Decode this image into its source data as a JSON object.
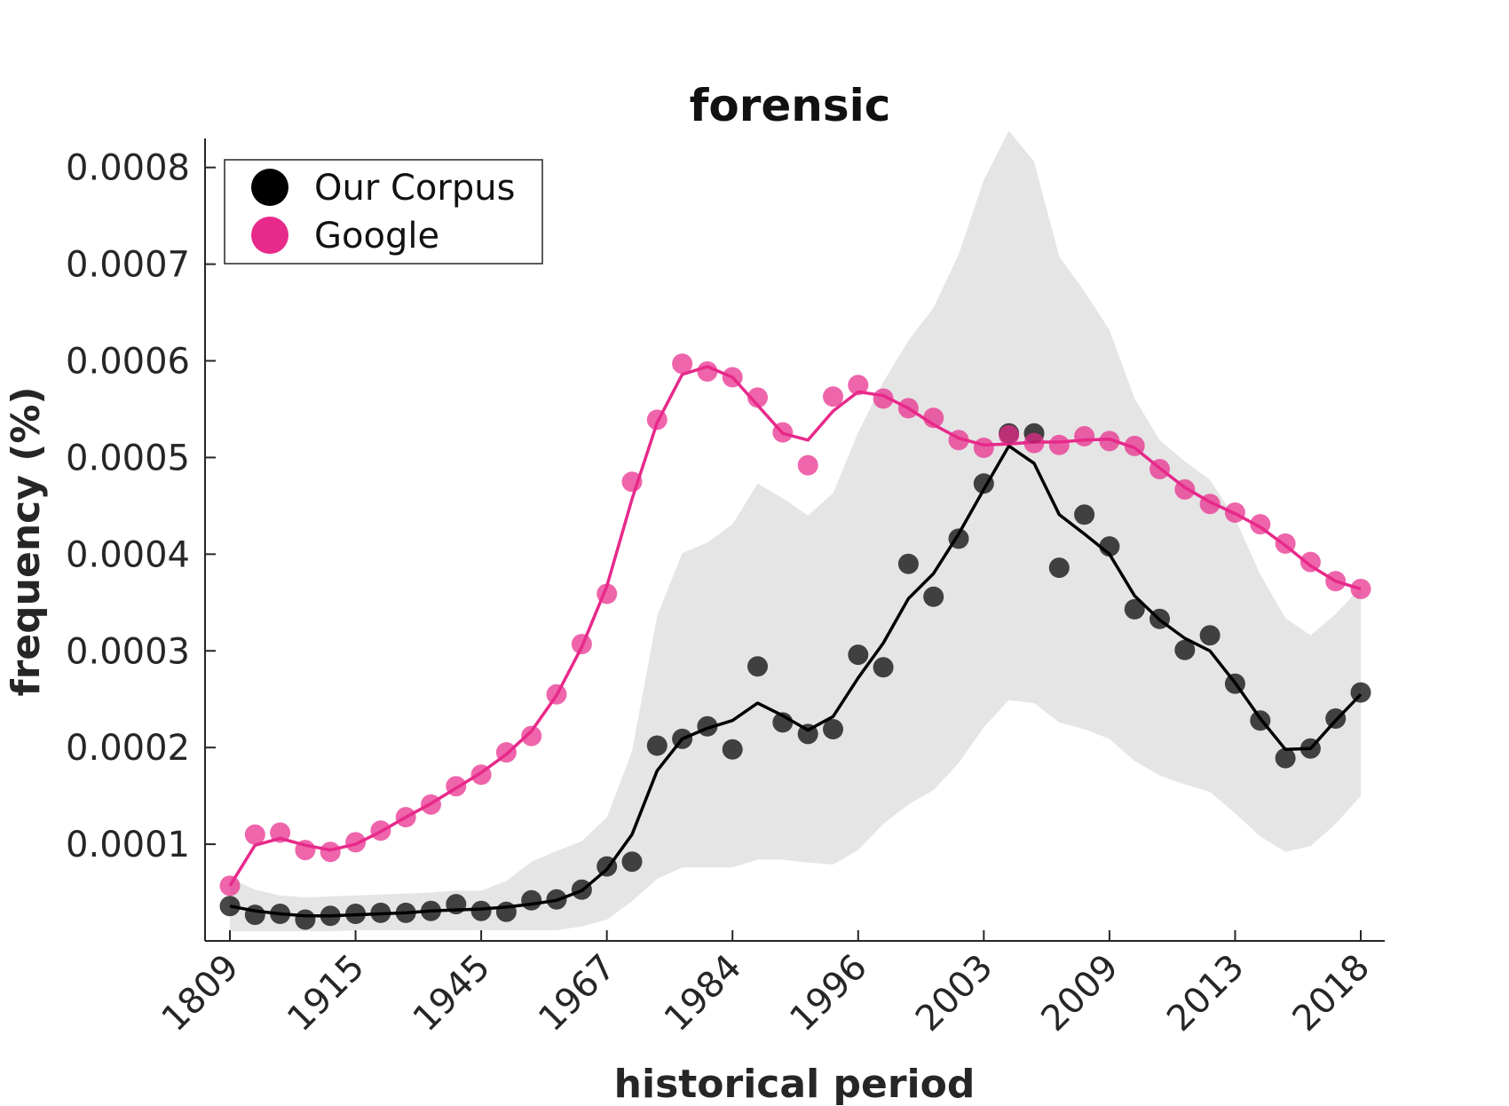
{
  "chart_data": {
    "type": "line",
    "title": "forensic",
    "xlabel": "historical period",
    "ylabel": "frequency (%)",
    "ylim": [
      0.0,
      0.00083
    ],
    "yticks": [
      {
        "value": 0.0001,
        "label": "0.0001"
      },
      {
        "value": 0.0002,
        "label": "0.0002"
      },
      {
        "value": 0.0003,
        "label": "0.0003"
      },
      {
        "value": 0.0004,
        "label": "0.0004"
      },
      {
        "value": 0.0005,
        "label": "0.0005"
      },
      {
        "value": 0.0006,
        "label": "0.0006"
      },
      {
        "value": 0.0007,
        "label": "0.0007"
      },
      {
        "value": 0.0008,
        "label": "0.0008"
      }
    ],
    "xticks": [
      "1809",
      "1915",
      "1945",
      "1967",
      "1984",
      "1996",
      "2003",
      "2009",
      "2013",
      "2018"
    ],
    "xtick_positions": [
      0,
      5,
      10,
      15,
      20,
      25,
      30,
      35,
      40,
      45
    ],
    "x_count": 46,
    "legend_position": "top-left",
    "series": [
      {
        "name": "Our Corpus",
        "color": "#000000",
        "points": [
          3.6e-05,
          2.7e-05,
          2.8e-05,
          2.2e-05,
          2.6e-05,
          2.8e-05,
          2.9e-05,
          2.9e-05,
          3.1e-05,
          3.8e-05,
          3.1e-05,
          3e-05,
          4.2e-05,
          4.3e-05,
          5.3e-05,
          7.7e-05,
          8.2e-05,
          0.000202,
          0.000209,
          0.000222,
          0.000198,
          0.000284,
          0.000226,
          0.000214,
          0.000219,
          0.000296,
          0.000283,
          0.00039,
          0.000356,
          0.000416,
          0.000473,
          0.000525,
          0.000525,
          0.000386,
          0.000441,
          0.000408,
          0.000343,
          0.000333,
          0.000301,
          0.000316,
          0.000266,
          0.000228,
          0.000189,
          0.000199,
          0.00023,
          0.000257
        ],
        "smooth": [
          3.6e-05,
          3.1e-05,
          2.8e-05,
          2.6e-05,
          2.6e-05,
          2.7e-05,
          2.8e-05,
          2.9e-05,
          3.1e-05,
          3.2e-05,
          3.3e-05,
          3.5e-05,
          3.8e-05,
          4.2e-05,
          5.2e-05,
          7.4e-05,
          0.00011,
          0.000176,
          0.000209,
          0.00022,
          0.000228,
          0.000246,
          0.000233,
          0.000218,
          0.000232,
          0.000272,
          0.000308,
          0.000354,
          0.00038,
          0.000421,
          0.000467,
          0.000512,
          0.000494,
          0.000441,
          0.000421,
          0.0004,
          0.000357,
          0.000332,
          0.000313,
          0.0003,
          0.000267,
          0.00023,
          0.000198,
          0.000199,
          0.000228,
          0.000255
        ],
        "band_upper": [
          6.5e-05,
          5.3e-05,
          4.7e-05,
          4.5e-05,
          4.6e-05,
          4.7e-05,
          4.8e-05,
          4.9e-05,
          5e-05,
          5.2e-05,
          5.2e-05,
          6.2e-05,
          8.2e-05,
          9.3e-05,
          0.000103,
          0.000128,
          0.000196,
          0.000336,
          0.000401,
          0.000412,
          0.000431,
          0.000473,
          0.000458,
          0.00044,
          0.000463,
          0.000526,
          0.000578,
          0.000621,
          0.000655,
          0.00071,
          0.000787,
          0.000838,
          0.000806,
          0.000708,
          0.000672,
          0.000632,
          0.000561,
          0.000518,
          0.000496,
          0.000477,
          0.000437,
          0.000379,
          0.000334,
          0.000316,
          0.000338,
          0.000366
        ],
        "band_lower": [
          1e-05,
          1e-05,
          1e-05,
          1e-05,
          1e-05,
          1.1e-05,
          1.1e-05,
          1.1e-05,
          1.1e-05,
          1.1e-05,
          1.1e-05,
          1.1e-05,
          1.1e-05,
          1.1e-05,
          1.5e-05,
          2.2e-05,
          4.1e-05,
          6.4e-05,
          7.6e-05,
          7.6e-05,
          7.6e-05,
          8.4e-05,
          8.4e-05,
          8.1e-05,
          7.9e-05,
          9.4e-05,
          0.000121,
          0.000141,
          0.000156,
          0.000184,
          0.000221,
          0.000249,
          0.000246,
          0.000226,
          0.000219,
          0.000209,
          0.000186,
          0.000171,
          0.000162,
          0.000154,
          0.000132,
          0.000108,
          9.2e-05,
          9.8e-05,
          0.000121,
          0.00015
        ]
      },
      {
        "name": "Google",
        "color": "#e7298a",
        "points": [
          5.7e-05,
          0.00011,
          0.000112,
          9.4e-05,
          9.2e-05,
          0.000102,
          0.000114,
          0.000128,
          0.000141,
          0.00016,
          0.000172,
          0.000195,
          0.000212,
          0.000255,
          0.000307,
          0.000359,
          0.000475,
          0.000539,
          0.000597,
          0.000589,
          0.000583,
          0.000562,
          0.000526,
          0.000492,
          0.000563,
          0.000575,
          0.000561,
          0.000551,
          0.000541,
          0.000518,
          0.00051,
          0.000523,
          0.000515,
          0.000513,
          0.000522,
          0.000517,
          0.000512,
          0.000488,
          0.000467,
          0.000452,
          0.000443,
          0.000431,
          0.000411,
          0.000392,
          0.000372,
          0.000364
        ],
        "smooth": [
          5.7e-05,
          9.9e-05,
          0.000106,
          9.9e-05,
          9.4e-05,
          0.0001,
          0.000113,
          0.000128,
          0.000142,
          0.000158,
          0.000174,
          0.000193,
          0.000217,
          0.000254,
          0.000304,
          0.000367,
          0.000457,
          0.000536,
          0.000586,
          0.000594,
          0.000583,
          0.000554,
          0.000525,
          0.000518,
          0.000548,
          0.000568,
          0.000564,
          0.000551,
          0.000534,
          0.00052,
          0.000513,
          0.000514,
          0.000516,
          0.000516,
          0.000518,
          0.000519,
          0.00051,
          0.000489,
          0.000469,
          0.000454,
          0.000442,
          0.000428,
          0.000409,
          0.000388,
          0.000372,
          0.000364
        ]
      }
    ]
  }
}
